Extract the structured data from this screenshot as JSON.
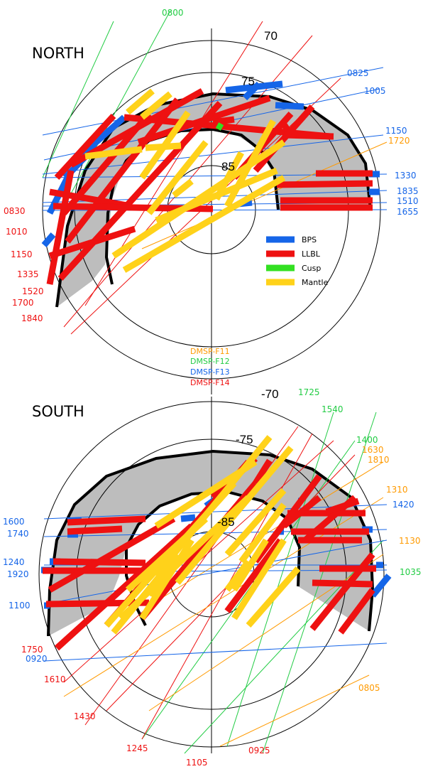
{
  "north": {
    "title": "NORTH",
    "lat_labels": [
      "70",
      "75",
      "85"
    ],
    "times": [
      {
        "text": "0800",
        "sat": "F12"
      },
      {
        "text": "0825",
        "sat": "F13"
      },
      {
        "text": "1005",
        "sat": "F13"
      },
      {
        "text": "1150",
        "sat": "F13"
      },
      {
        "text": "1720",
        "sat": "F11"
      },
      {
        "text": "1330",
        "sat": "F13"
      },
      {
        "text": "1835",
        "sat": "F13"
      },
      {
        "text": "1510",
        "sat": "F13"
      },
      {
        "text": "1655",
        "sat": "F13"
      },
      {
        "text": "0830",
        "sat": "F14"
      },
      {
        "text": "1010",
        "sat": "F14"
      },
      {
        "text": "1150",
        "sat": "F14"
      },
      {
        "text": "1335",
        "sat": "F14"
      },
      {
        "text": "1520",
        "sat": "F14"
      },
      {
        "text": "1700",
        "sat": "F14"
      },
      {
        "text": "1840",
        "sat": "F14"
      }
    ]
  },
  "south": {
    "title": "SOUTH",
    "lat_labels": [
      "-70",
      "-75",
      "-85"
    ],
    "times": [
      {
        "text": "1725",
        "sat": "F12"
      },
      {
        "text": "1540",
        "sat": "F12"
      },
      {
        "text": "1400",
        "sat": "F12"
      },
      {
        "text": "1630",
        "sat": "F11"
      },
      {
        "text": "1810",
        "sat": "F11"
      },
      {
        "text": "1310",
        "sat": "F11"
      },
      {
        "text": "1420",
        "sat": "F13"
      },
      {
        "text": "1130",
        "sat": "F11"
      },
      {
        "text": "1035",
        "sat": "F12"
      },
      {
        "text": "1600",
        "sat": "F13"
      },
      {
        "text": "1740",
        "sat": "F13"
      },
      {
        "text": "1240",
        "sat": "F13"
      },
      {
        "text": "1920",
        "sat": "F13"
      },
      {
        "text": "1100",
        "sat": "F13"
      },
      {
        "text": "1750",
        "sat": "F14"
      },
      {
        "text": "0920",
        "sat": "F13"
      },
      {
        "text": "1610",
        "sat": "F14"
      },
      {
        "text": "1430",
        "sat": "F14"
      },
      {
        "text": "1245",
        "sat": "F14"
      },
      {
        "text": "1105",
        "sat": "F14"
      },
      {
        "text": "0925",
        "sat": "F14"
      },
      {
        "text": "0805",
        "sat": "F11"
      }
    ]
  },
  "legend": [
    {
      "label": "BPS",
      "color": "#1565e8"
    },
    {
      "label": "LLBL",
      "color": "#ee1111"
    },
    {
      "label": "Cusp",
      "color": "#33e022"
    },
    {
      "label": "Mantle",
      "color": "#ffd21a"
    }
  ],
  "satellites": [
    {
      "label": "DMSP-F11",
      "color": "#ff9a00"
    },
    {
      "label": "DMSP-F12",
      "color": "#22cc44"
    },
    {
      "label": "DMSP-F13",
      "color": "#1565e8"
    },
    {
      "label": "DMSP-F14",
      "color": "#ee1111"
    }
  ],
  "colors": {
    "region_fill": "#bdbdbd",
    "bps": "#1565e8",
    "llbl": "#ee1111",
    "cusp": "#33e022",
    "mantle": "#ffd21a",
    "f11": "#ff9a00",
    "f12": "#22cc44",
    "f13": "#1565e8",
    "f14": "#ee1111"
  }
}
